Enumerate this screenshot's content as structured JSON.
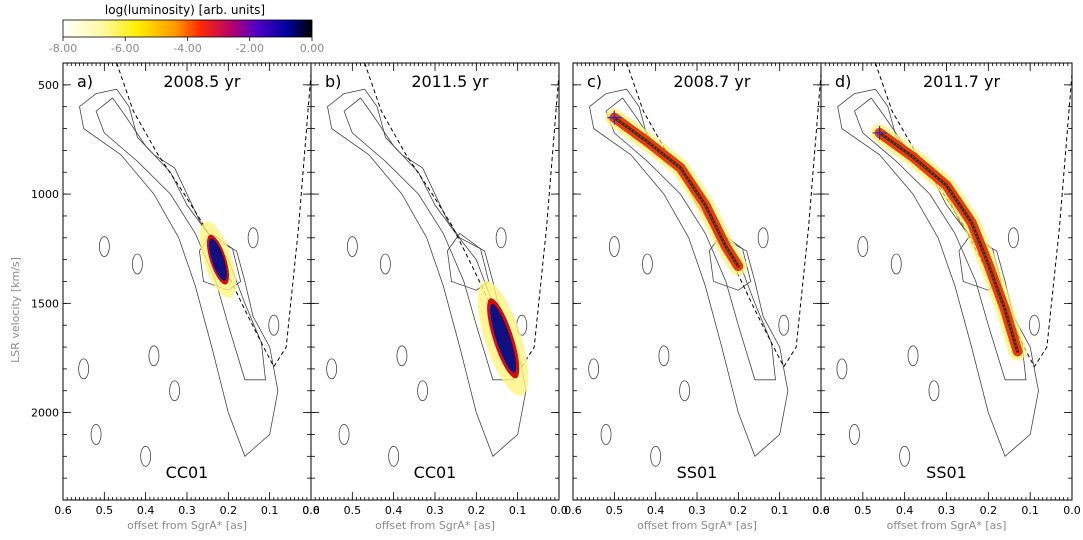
{
  "colorbar": {
    "title": "log(luminosity)  [arb. units]",
    "ticks": [
      "-8.00",
      "-6.00",
      "-4.00",
      "-2.00",
      "0.00"
    ],
    "range": [
      -8,
      0
    ],
    "colors": [
      "#ffffff",
      "#fff9a0",
      "#ffee00",
      "#ff9a00",
      "#ff2a00",
      "#b4006e",
      "#5000c8",
      "#0000a0",
      "#000000"
    ]
  },
  "axes": {
    "ylabel": "LSR velocity [km/s]",
    "xlabel": "offset from SgrA* [as]",
    "yticks": [
      "500",
      "1000",
      "1500",
      "2000"
    ],
    "xticks": [
      "0.6",
      "0.5",
      "0.4",
      "0.3",
      "0.2",
      "0.1",
      "0.0"
    ]
  },
  "chart_data": [
    {
      "type": "heatmap",
      "panel_label": "a)",
      "epoch": "2008.5 yr",
      "model": "CC01",
      "x_axis": "offset from SgrA* [as]",
      "y_axis": "LSR velocity [km/s]",
      "xlim": [
        0.6,
        0.0
      ],
      "ylim": [
        2400,
        400
      ],
      "emission_center": {
        "offset": 0.225,
        "velocity": 1300
      }
    },
    {
      "type": "heatmap",
      "panel_label": "b)",
      "epoch": "2011.5 yr",
      "model": "CC01",
      "x_axis": "offset from SgrA* [as]",
      "y_axis": "LSR velocity [km/s]",
      "xlim": [
        0.6,
        0.0
      ],
      "ylim": [
        2400,
        400
      ],
      "emission_center": {
        "offset": 0.135,
        "velocity": 1660
      }
    },
    {
      "type": "heatmap",
      "panel_label": "c)",
      "epoch": "2008.7 yr",
      "model": "SS01",
      "x_axis": "offset from SgrA* [as]",
      "y_axis": "LSR velocity [km/s]",
      "xlim": [
        0.6,
        0.0
      ],
      "ylim": [
        2400,
        400
      ],
      "streamer": [
        [
          0.5,
          650
        ],
        [
          0.42,
          760
        ],
        [
          0.34,
          880
        ],
        [
          0.28,
          1050
        ],
        [
          0.23,
          1240
        ],
        [
          0.2,
          1330
        ]
      ]
    },
    {
      "type": "heatmap",
      "panel_label": "d)",
      "epoch": "2011.7 yr",
      "model": "SS01",
      "x_axis": "offset from SgrA* [as]",
      "y_axis": "LSR velocity [km/s]",
      "xlim": [
        0.6,
        0.0
      ],
      "ylim": [
        2400,
        400
      ],
      "streamer": [
        [
          0.46,
          720
        ],
        [
          0.38,
          830
        ],
        [
          0.3,
          960
        ],
        [
          0.24,
          1130
        ],
        [
          0.2,
          1320
        ],
        [
          0.16,
          1530
        ],
        [
          0.13,
          1720
        ]
      ]
    }
  ]
}
